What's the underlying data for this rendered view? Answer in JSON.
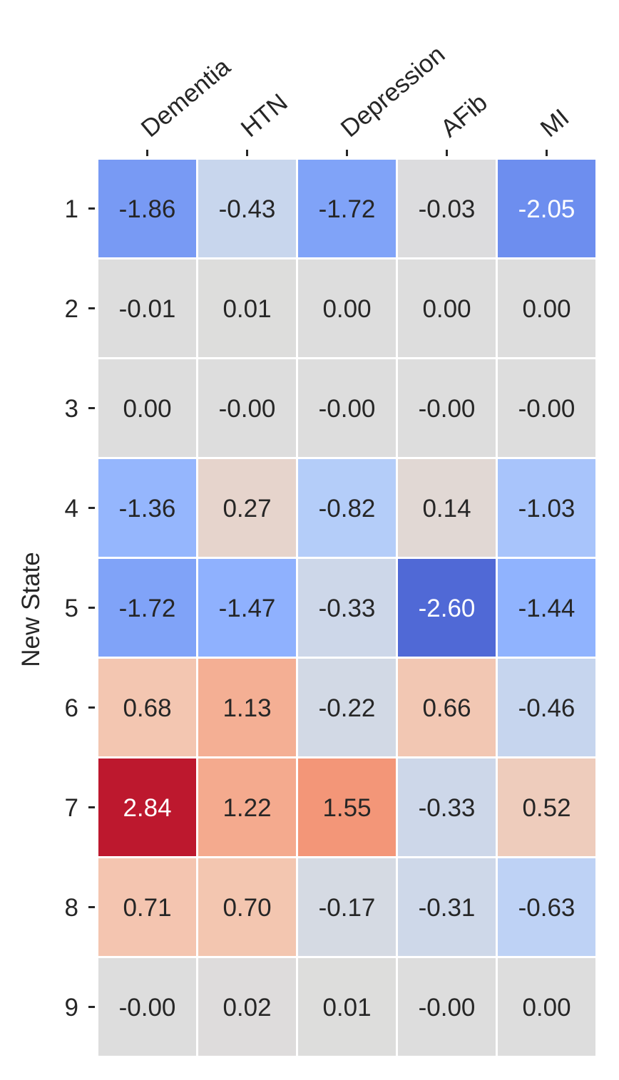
{
  "chart_data": {
    "type": "heatmap",
    "ylabel": "New State",
    "x_categories": [
      "Dementia",
      "HTN",
      "Depression",
      "AFib",
      "MI"
    ],
    "y_categories": [
      "1",
      "2",
      "3",
      "4",
      "5",
      "6",
      "7",
      "8",
      "9"
    ],
    "values": [
      [
        -1.86,
        -0.43,
        -1.72,
        -0.03,
        -2.05
      ],
      [
        -0.01,
        0.01,
        0.0,
        0.0,
        0.0
      ],
      [
        0.0,
        -0.0,
        -0.0,
        -0.0,
        -0.0
      ],
      [
        -1.36,
        0.27,
        -0.82,
        0.14,
        -1.03
      ],
      [
        -1.72,
        -1.47,
        -0.33,
        -2.6,
        -1.44
      ],
      [
        0.68,
        1.13,
        -0.22,
        0.66,
        -0.46
      ],
      [
        2.84,
        1.22,
        1.55,
        -0.33,
        0.52
      ],
      [
        0.71,
        0.7,
        -0.17,
        -0.31,
        -0.63
      ],
      [
        -0.0,
        0.02,
        0.01,
        -0.0,
        0.0
      ]
    ],
    "value_labels": [
      [
        "-1.86",
        "-0.43",
        "-1.72",
        "-0.03",
        "-2.05"
      ],
      [
        "-0.01",
        "0.01",
        "0.00",
        "0.00",
        "0.00"
      ],
      [
        "0.00",
        "-0.00",
        "-0.00",
        "-0.00",
        "-0.00"
      ],
      [
        "-1.36",
        "0.27",
        "-0.82",
        "0.14",
        "-1.03"
      ],
      [
        "-1.72",
        "-1.47",
        "-0.33",
        "-2.60",
        "-1.44"
      ],
      [
        "0.68",
        "1.13",
        "-0.22",
        "0.66",
        "-0.46"
      ],
      [
        "2.84",
        "1.22",
        "1.55",
        "-0.33",
        "0.52"
      ],
      [
        "0.71",
        "0.70",
        "-0.17",
        "-0.31",
        "-0.63"
      ],
      [
        "-0.00",
        "0.02",
        "0.01",
        "-0.00",
        "0.00"
      ]
    ],
    "colormap": "coolwarm",
    "color_range": [
      -3.0,
      3.0
    ],
    "colorbar": false,
    "x_tick_position": "top",
    "x_tick_rotation_deg": -40,
    "grid_color": "#ffffff",
    "text_color_dark": "#262626",
    "text_color_light": "#ffffff"
  }
}
